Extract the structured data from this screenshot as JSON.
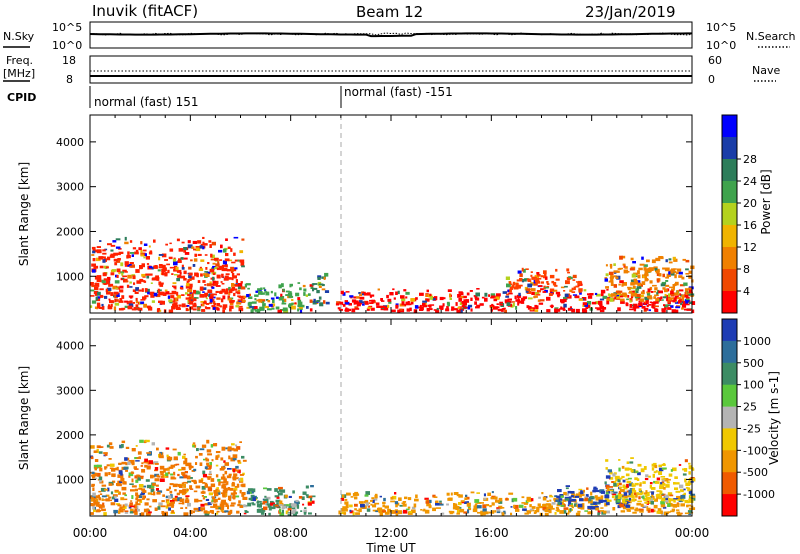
{
  "header": {
    "station": "Inuvik  (fitACF)",
    "beam": "Beam 12",
    "date": "23/Jan/2019"
  },
  "noise_panel": {
    "left_label": "N.Sky",
    "right_label": "N.Search",
    "left_ticks": [
      "10^5",
      "10^0"
    ],
    "right_ticks": [
      "10^5",
      "10^0"
    ]
  },
  "freq_panel": {
    "left_label": "Freq.",
    "left_unit": "[MHz]",
    "right_label": "Nave",
    "left_ticks": [
      "18",
      "8"
    ],
    "right_ticks": [
      "60",
      "0"
    ]
  },
  "cpid": {
    "label": "CPID",
    "modes": [
      "normal (fast) 151",
      "normal (fast) -151"
    ]
  },
  "chart_data": [
    {
      "type": "heatmap",
      "title": "",
      "xlabel": "Time UT",
      "ylabel": "Slant Range [km]",
      "xticks": [
        "00:00",
        "04:00",
        "08:00",
        "12:00",
        "16:00",
        "20:00",
        "00:00"
      ],
      "yticks": [
        "1000",
        "2000",
        "3000",
        "4000"
      ],
      "xlim_hours": [
        0,
        24
      ],
      "ylim_km": [
        180,
        4600
      ],
      "colorbar": {
        "label": "Power [dB]",
        "ticks": [
          "4",
          "8",
          "12",
          "16",
          "20",
          "24",
          "28"
        ],
        "colors": [
          "#0000ff",
          "#1a3da8",
          "#2d7d5a",
          "#3fa34d",
          "#b4d21e",
          "#f0b400",
          "#f08000",
          "#f04800",
          "#ff0000"
        ]
      },
      "echo_regions": [
        {
          "t0": 0.0,
          "t1": 6.1,
          "r0": 250,
          "r1": 1900,
          "dominant": "#ff2000"
        },
        {
          "t0": 6.1,
          "t1": 8.8,
          "r0": 250,
          "r1": 900,
          "dominant": "#3fa34d"
        },
        {
          "t0": 8.8,
          "t1": 9.4,
          "r0": 400,
          "r1": 1100,
          "dominant": "#2d7d5a"
        },
        {
          "t0": 9.8,
          "t1": 24.0,
          "r0": 250,
          "r1": 750,
          "dominant": "#ff0000"
        },
        {
          "t0": 16.5,
          "t1": 19.5,
          "r0": 600,
          "r1": 1200,
          "dominant": "#ff4000"
        },
        {
          "t0": 20.5,
          "t1": 24.0,
          "r0": 500,
          "r1": 1500,
          "dominant": "#f08000"
        }
      ]
    },
    {
      "type": "heatmap",
      "title": "",
      "xlabel": "Time UT",
      "ylabel": "Slant Range [km]",
      "xticks": [
        "00:00",
        "04:00",
        "08:00",
        "12:00",
        "16:00",
        "20:00",
        "00:00"
      ],
      "yticks": [
        "1000",
        "2000",
        "3000",
        "4000"
      ],
      "xlim_hours": [
        0,
        24
      ],
      "ylim_km": [
        180,
        4600
      ],
      "colorbar": {
        "label": "Velocity [m s-1]",
        "ticks": [
          "1000",
          "500",
          "100",
          "25",
          "-25",
          "-100",
          "-500",
          "-1000"
        ],
        "colors": [
          "#1e3cb4",
          "#2d6e9b",
          "#3c8c64",
          "#5ac83c",
          "#b4b4b4",
          "#f0c800",
          "#f09600",
          "#f05a00",
          "#ff0000"
        ]
      },
      "echo_regions": [
        {
          "t0": 0.0,
          "t1": 6.1,
          "r0": 250,
          "r1": 1900,
          "dominant": "#f07800"
        },
        {
          "t0": 6.1,
          "t1": 8.8,
          "r0": 250,
          "r1": 900,
          "dominant": "#3c8c64"
        },
        {
          "t0": 7.5,
          "t1": 8.2,
          "r0": 250,
          "r1": 600,
          "dominant": "#b4b4b4"
        },
        {
          "t0": 9.8,
          "t1": 24.0,
          "r0": 250,
          "r1": 750,
          "dominant": "#f09600"
        },
        {
          "t0": 18.5,
          "t1": 21.5,
          "r0": 400,
          "r1": 900,
          "dominant": "#1e3cb4"
        },
        {
          "t0": 20.5,
          "t1": 24.0,
          "r0": 500,
          "r1": 1500,
          "dominant": "#f0c800"
        }
      ]
    }
  ]
}
